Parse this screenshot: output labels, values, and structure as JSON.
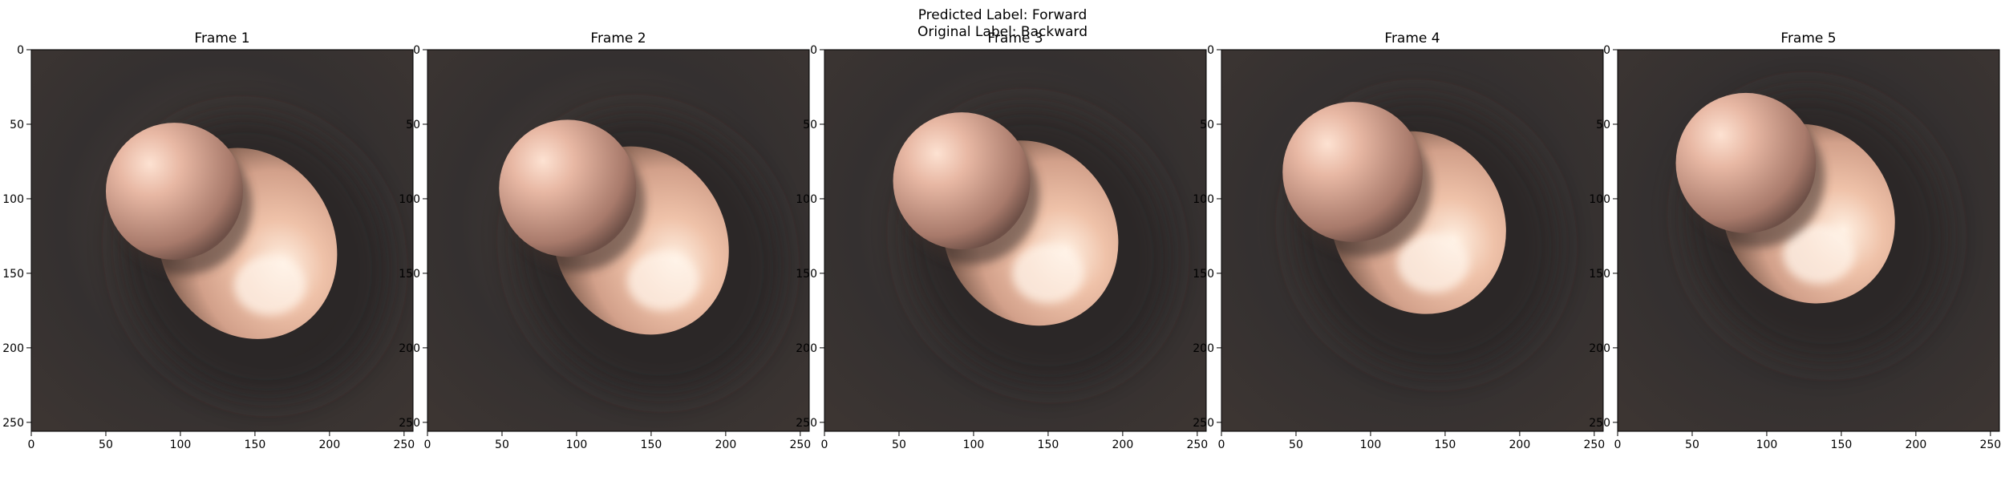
{
  "figure": {
    "predicted_label": "Predicted Label: Forward",
    "original_label": "Original Label: Backward"
  },
  "colors": {
    "tissue_dark": "#343030",
    "tissue_mid": "#4a403a",
    "highlight": "#fde2d2",
    "lumen_mid": "#d2a08a",
    "shadow": "#2b2626"
  },
  "axis": {
    "x_ticks": [
      "0",
      "50",
      "100",
      "150",
      "200",
      "250"
    ],
    "y_ticks": [
      "0",
      "50",
      "100",
      "150",
      "200",
      "250"
    ]
  },
  "frames": [
    {
      "title": "Frame 1"
    },
    {
      "title": "Frame 2"
    },
    {
      "title": "Frame 3"
    },
    {
      "title": "Frame 4"
    },
    {
      "title": "Frame 5"
    }
  ]
}
